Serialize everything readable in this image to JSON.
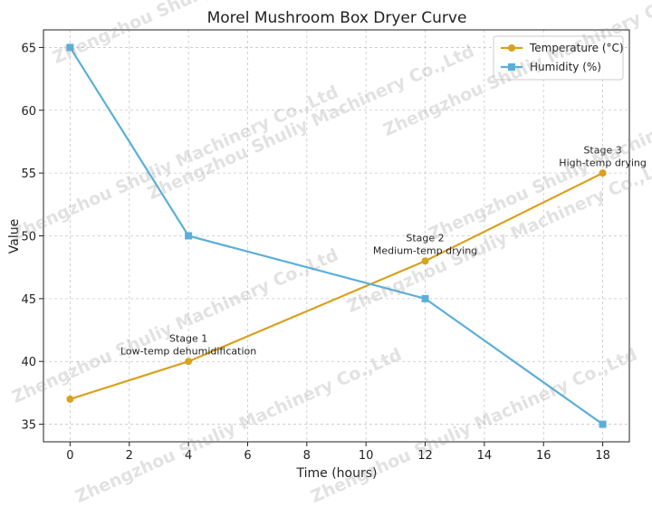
{
  "watermark_text": "Zhengzhou Shuliy Machinery Co.,Ltd",
  "chart_data": {
    "type": "line",
    "title": "Morel Mushroom Box Dryer Curve",
    "xlabel": "Time (hours)",
    "ylabel": "Value",
    "xlim": [
      -0.9,
      18.9
    ],
    "ylim": [
      33.6,
      66.4
    ],
    "xticks": [
      0,
      2,
      4,
      6,
      8,
      10,
      12,
      14,
      16,
      18
    ],
    "yticks": [
      35,
      40,
      45,
      50,
      55,
      60,
      65
    ],
    "grid": true,
    "legend_position": "top-right",
    "x": [
      0,
      4,
      12,
      18
    ],
    "series": [
      {
        "name": "Temperature (°C)",
        "values": [
          37,
          40,
          48,
          55
        ],
        "color": "#d9a11e",
        "marker": "circle"
      },
      {
        "name": "Humidity (%)",
        "values": [
          65,
          50,
          45,
          35
        ],
        "color": "#5aafd8",
        "marker": "square"
      }
    ],
    "annotations": [
      {
        "lines": [
          "Stage 1",
          "Low-temp dehumidification"
        ],
        "x": 4,
        "y": 41
      },
      {
        "lines": [
          "Stage 2",
          "Medium-temp drying"
        ],
        "x": 12,
        "y": 49
      },
      {
        "lines": [
          "Stage 3",
          "High-temp drying"
        ],
        "x": 18,
        "y": 56
      }
    ]
  }
}
